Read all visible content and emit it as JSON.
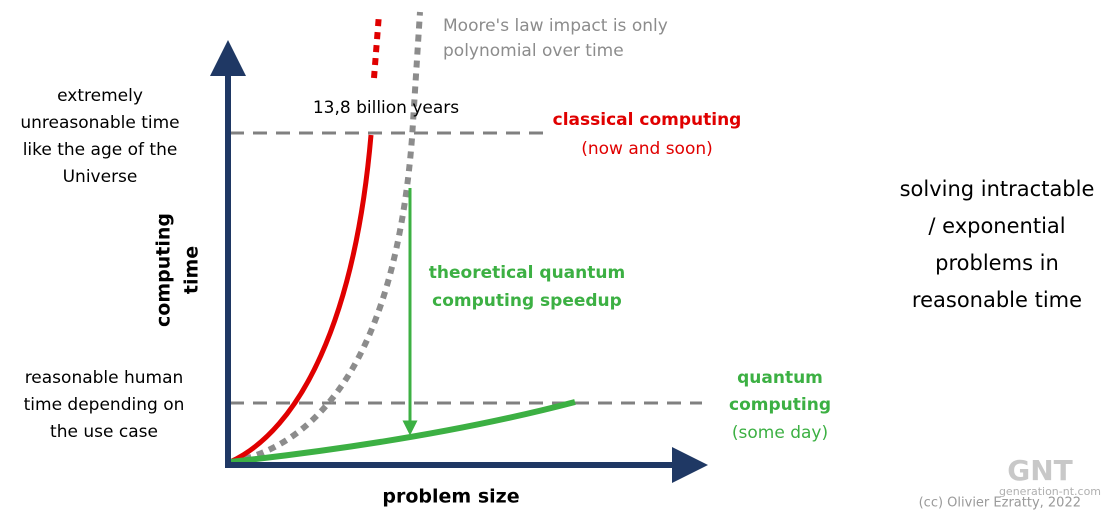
{
  "moore_note": [
    "Moore's law impact is only",
    "polynomial over time"
  ],
  "age_label": "13,8 billion years",
  "classical": [
    "classical computing",
    "(now and soon)"
  ],
  "unreasonable": [
    "extremely",
    "unreasonable time",
    "like the age of the",
    "Universe"
  ],
  "y_axis_label": [
    "computing",
    "time"
  ],
  "speedup": [
    "theoretical quantum",
    "computing speedup"
  ],
  "reasonable": [
    "reasonable human",
    "time depending on",
    "the use case"
  ],
  "quantum": [
    "quantum",
    "computing",
    "(some day)"
  ],
  "summary": [
    "solving intractable",
    "/ exponential",
    "problems in",
    "reasonable time"
  ],
  "x_axis_label": "problem size",
  "credit": "(cc) Olivier Ezratty, 2022",
  "watermark": [
    "GNT",
    "generation-nt.com"
  ]
}
